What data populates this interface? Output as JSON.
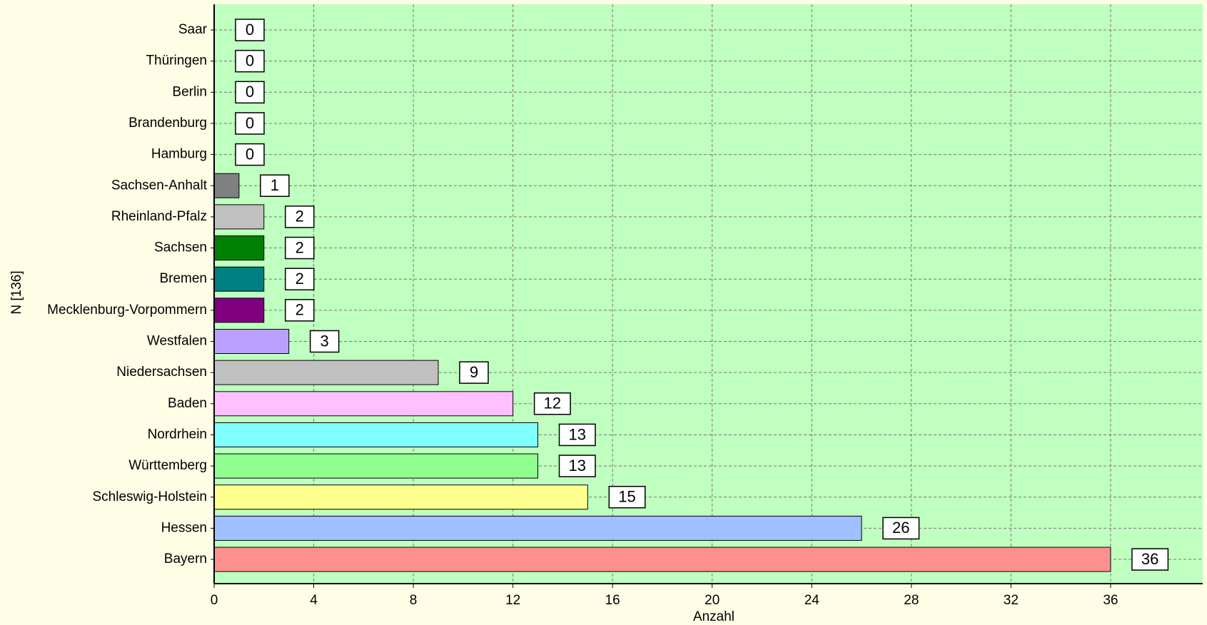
{
  "chart_data": {
    "type": "barh",
    "categories": [
      "Saar",
      "Thüringen",
      "Berlin",
      "Brandenburg",
      "Hamburg",
      "Sachsen-Anhalt",
      "Rheinland-Pfalz",
      "Sachsen",
      "Bremen",
      "Mecklenburg-Vorpommern",
      "Westfalen",
      "Niedersachsen",
      "Baden",
      "Nordrhein",
      "Württemberg",
      "Schleswig-Holstein",
      "Hessen",
      "Bayern"
    ],
    "values": [
      0,
      0,
      0,
      0,
      0,
      1,
      2,
      2,
      2,
      2,
      3,
      9,
      12,
      13,
      13,
      15,
      26,
      36
    ],
    "colors": [
      "#808080",
      "#808080",
      "#808080",
      "#808080",
      "#808080",
      "#808080",
      "#c0c0c0",
      "#008000",
      "#008080",
      "#800080",
      "#b9a0ff",
      "#c0c0c0",
      "#ffc0ff",
      "#80ffff",
      "#90ff90",
      "#ffff90",
      "#a0c0ff",
      "#ff9090"
    ],
    "xlabel": "Anzahl",
    "ylabel": "N [136]",
    "xlim": [
      0,
      39.7
    ],
    "xticks": [
      0,
      4,
      8,
      12,
      16,
      20,
      24,
      28,
      32,
      36
    ],
    "grid": true
  }
}
